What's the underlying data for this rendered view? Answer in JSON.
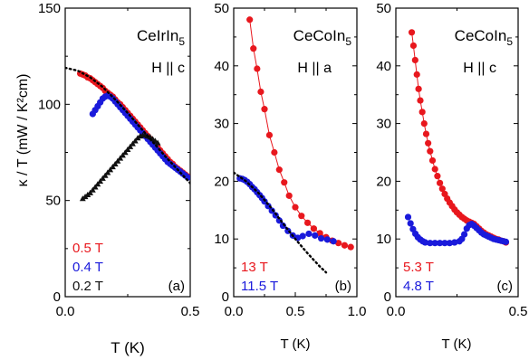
{
  "figure": {
    "ylabel_a": "κ / T (mW / K²cm)"
  },
  "chart_data": [
    {
      "type": "scatter",
      "panel_label": "(a)",
      "title_main": "CeIrIn",
      "title_sub": "5",
      "field_dir": "H || c",
      "xlabel": "T (K)",
      "ylabel": "κ / T (mW / K²cm)",
      "xlim": [
        0,
        0.5
      ],
      "ylim": [
        0,
        150
      ],
      "xticks": [
        0.0,
        0.5
      ],
      "xtick_labels": [
        "0.0",
        "0.5"
      ],
      "yticks": [
        0,
        50,
        100,
        150
      ],
      "ytick_labels": [
        "0",
        "50",
        "100",
        "150"
      ],
      "legend_placement": "bottom-left",
      "series": [
        {
          "name": "0.5 T",
          "color": "#e8171d",
          "marker": "circle",
          "line": false,
          "x": [
            0.06,
            0.07,
            0.08,
            0.09,
            0.1,
            0.11,
            0.12,
            0.13,
            0.14,
            0.15,
            0.16,
            0.17,
            0.18,
            0.19,
            0.2,
            0.21,
            0.22,
            0.23,
            0.24,
            0.25,
            0.26,
            0.27,
            0.28,
            0.29,
            0.3,
            0.31,
            0.32,
            0.33,
            0.34,
            0.35,
            0.36,
            0.37,
            0.38,
            0.39,
            0.4,
            0.41,
            0.42,
            0.43,
            0.44,
            0.45,
            0.46,
            0.47,
            0.48,
            0.49
          ],
          "y": [
            116,
            115.5,
            115,
            114,
            113.5,
            112.5,
            111.5,
            110.5,
            109.5,
            108.5,
            107,
            106,
            105,
            104,
            102.5,
            101,
            100,
            98.5,
            97,
            95.5,
            94,
            92.5,
            91,
            89.5,
            88,
            86.5,
            85,
            83.5,
            82,
            80.5,
            79,
            77.5,
            76,
            74.5,
            73,
            71.5,
            70,
            69,
            67.5,
            66.5,
            65.5,
            64.5,
            63.5,
            62.5
          ]
        },
        {
          "name": "0.4 T",
          "color": "#1a1adb",
          "marker": "circle",
          "line": false,
          "x": [
            0.11,
            0.12,
            0.13,
            0.14,
            0.15,
            0.16,
            0.17,
            0.18,
            0.19,
            0.2,
            0.21,
            0.22,
            0.23,
            0.24,
            0.25,
            0.26,
            0.27,
            0.28,
            0.29,
            0.3,
            0.31,
            0.32,
            0.33,
            0.34,
            0.35,
            0.36,
            0.37,
            0.38,
            0.39,
            0.4,
            0.41,
            0.42,
            0.43,
            0.44,
            0.45,
            0.46,
            0.47,
            0.48,
            0.49
          ],
          "y": [
            95,
            97,
            99,
            101,
            103,
            104,
            104.5,
            104,
            103,
            101.5,
            100,
            98.5,
            97,
            95.5,
            94,
            92.5,
            91,
            89.5,
            88,
            86.5,
            85,
            83.5,
            82,
            80.5,
            79,
            77.5,
            76,
            74.5,
            73,
            71.5,
            70,
            69,
            68,
            67,
            66,
            65,
            64,
            63,
            62
          ]
        },
        {
          "name": "0.2 T",
          "color": "#111111",
          "marker": "triangle",
          "line": false,
          "x": [
            0.07,
            0.08,
            0.09,
            0.1,
            0.11,
            0.12,
            0.13,
            0.14,
            0.15,
            0.16,
            0.17,
            0.18,
            0.19,
            0.2,
            0.21,
            0.22,
            0.23,
            0.24,
            0.25,
            0.26,
            0.27,
            0.28,
            0.29,
            0.3,
            0.31,
            0.32,
            0.33,
            0.34,
            0.35,
            0.36,
            0.37
          ],
          "y": [
            51,
            52,
            53,
            54,
            55.5,
            57,
            58.5,
            60,
            61.5,
            63,
            64.5,
            66,
            67.5,
            69,
            70.5,
            72,
            73.5,
            75,
            76.5,
            78,
            79.5,
            81,
            82.5,
            83.5,
            84,
            84,
            83.5,
            83,
            82,
            81,
            80
          ]
        },
        {
          "name": "",
          "color": "#000000",
          "marker": "none",
          "line": "dotted",
          "x": [
            0.0,
            0.05,
            0.1,
            0.15,
            0.2,
            0.25,
            0.3,
            0.35,
            0.4,
            0.45,
            0.5
          ],
          "y": [
            119,
            117.5,
            114,
            109,
            102.5,
            95.5,
            88,
            80.5,
            73,
            66,
            59
          ]
        }
      ],
      "legend": [
        {
          "label": "0.5 T",
          "color": "#e8171d"
        },
        {
          "label": "0.4 T",
          "color": "#1a1adb"
        },
        {
          "label": "0.2 T",
          "color": "#111111"
        }
      ]
    },
    {
      "type": "scatter",
      "panel_label": "(b)",
      "title_main": "CeCoIn",
      "title_sub": "5",
      "field_dir": "H || a",
      "xlabel": "T (K)",
      "xlim": [
        0,
        1.0
      ],
      "ylim": [
        0,
        50
      ],
      "xticks": [
        0.0,
        0.5,
        1.0
      ],
      "xtick_labels": [
        "0.0",
        "0.5",
        "1.0"
      ],
      "yticks": [
        0,
        10,
        20,
        30,
        40,
        50
      ],
      "ytick_labels": [
        "0",
        "10",
        "20",
        "30",
        "40",
        "50"
      ],
      "legend_placement": "bottom-left",
      "series": [
        {
          "name": "13 T",
          "color": "#e8171d",
          "marker": "circle",
          "line": true,
          "x": [
            0.13,
            0.16,
            0.19,
            0.22,
            0.25,
            0.29,
            0.33,
            0.37,
            0.41,
            0.45,
            0.5,
            0.55,
            0.6,
            0.65,
            0.7,
            0.75,
            0.8,
            0.85,
            0.9,
            0.95
          ],
          "y": [
            48,
            43,
            39.5,
            35.5,
            32.5,
            28,
            25,
            22,
            19.8,
            17.5,
            15.5,
            14,
            12.8,
            11.8,
            11,
            10.3,
            9.7,
            9.3,
            8.9,
            8.6
          ]
        },
        {
          "name": "11.5 T",
          "color": "#1a1adb",
          "marker": "circle",
          "line": true,
          "x": [
            0.05,
            0.07,
            0.09,
            0.11,
            0.13,
            0.15,
            0.17,
            0.19,
            0.21,
            0.23,
            0.25,
            0.28,
            0.31,
            0.34,
            0.37,
            0.4,
            0.44,
            0.48,
            0.52,
            0.56,
            0.61,
            0.66,
            0.71,
            0.76,
            0.81
          ],
          "y": [
            20.5,
            20.4,
            20.2,
            19.9,
            19.5,
            19,
            18.6,
            18.1,
            17.6,
            17.1,
            16.5,
            15.7,
            14.9,
            14.1,
            13.2,
            12.3,
            11.4,
            10.6,
            10.2,
            10.5,
            10.9,
            10.6,
            10.1,
            9.9,
            9.6
          ]
        },
        {
          "name": "",
          "color": "#000000",
          "marker": "none",
          "line": "dotted",
          "x": [
            0.0,
            0.1,
            0.2,
            0.3,
            0.4,
            0.5,
            0.6,
            0.7,
            0.75
          ],
          "y": [
            21.5,
            20,
            18,
            15.5,
            12.7,
            10,
            7.5,
            5.2,
            4.2
          ]
        }
      ],
      "legend": [
        {
          "label": "13 T",
          "color": "#e8171d"
        },
        {
          "label": "11.5 T",
          "color": "#1a1adb"
        }
      ]
    },
    {
      "type": "scatter",
      "panel_label": "(c)",
      "title_main": "CeCoIn",
      "title_sub": "5",
      "field_dir": "H || c",
      "xlabel": "T (K)",
      "xlim": [
        0,
        0.5
      ],
      "ylim": [
        0,
        50
      ],
      "xticks": [
        0.0,
        0.5
      ],
      "xtick_labels": [
        "0.0",
        "0.5"
      ],
      "yticks": [
        0,
        10,
        20,
        30,
        40,
        50
      ],
      "ytick_labels": [
        "0",
        "10",
        "20",
        "30",
        "40",
        "50"
      ],
      "legend_placement": "bottom-left",
      "series": [
        {
          "name": "5.3 T",
          "color": "#e8171d",
          "marker": "circle",
          "line": true,
          "x": [
            0.065,
            0.072,
            0.079,
            0.086,
            0.093,
            0.1,
            0.108,
            0.116,
            0.124,
            0.132,
            0.14,
            0.15,
            0.16,
            0.17,
            0.18,
            0.19,
            0.2,
            0.21,
            0.22,
            0.23,
            0.24,
            0.25,
            0.26,
            0.27,
            0.28,
            0.29,
            0.3,
            0.31,
            0.32,
            0.33,
            0.34,
            0.35,
            0.36,
            0.37,
            0.38,
            0.39,
            0.4,
            0.41,
            0.42,
            0.43,
            0.44,
            0.45
          ],
          "y": [
            45.8,
            43.5,
            41,
            38.5,
            36,
            34,
            32,
            30,
            28.2,
            26.6,
            25.2,
            23.6,
            22.1,
            20.9,
            19.7,
            18.7,
            17.8,
            17,
            16.3,
            15.7,
            15.1,
            14.6,
            14.2,
            13.8,
            13.5,
            13.2,
            13,
            12.8,
            12.6,
            12.2,
            11.8,
            11.4,
            11.1,
            10.8,
            10.6,
            10.4,
            10.2,
            10,
            9.9,
            9.7,
            9.6,
            9.4
          ]
        },
        {
          "name": "4.8 T",
          "color": "#1a1adb",
          "marker": "circle",
          "line": true,
          "x": [
            0.05,
            0.06,
            0.07,
            0.08,
            0.09,
            0.1,
            0.11,
            0.12,
            0.14,
            0.16,
            0.18,
            0.2,
            0.22,
            0.24,
            0.26,
            0.27,
            0.28,
            0.29,
            0.3,
            0.31,
            0.32,
            0.33,
            0.34,
            0.35,
            0.36,
            0.37,
            0.38,
            0.39,
            0.4,
            0.41,
            0.42,
            0.43,
            0.44,
            0.45
          ],
          "y": [
            13.8,
            12.7,
            11.7,
            10.9,
            10.3,
            9.9,
            9.6,
            9.4,
            9.3,
            9.3,
            9.3,
            9.3,
            9.3,
            9.4,
            9.6,
            10,
            10.8,
            11.8,
            12.4,
            12.6,
            12.3,
            11.9,
            11.5,
            11.1,
            10.8,
            10.6,
            10.4,
            10.2,
            10,
            9.9,
            9.8,
            9.7,
            9.6,
            9.5
          ]
        }
      ],
      "legend": [
        {
          "label": "5.3 T",
          "color": "#e8171d"
        },
        {
          "label": "4.8 T",
          "color": "#1a1adb"
        }
      ]
    }
  ]
}
